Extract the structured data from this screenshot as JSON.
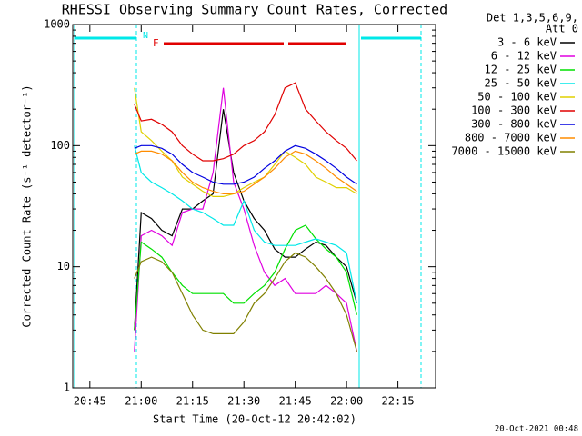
{
  "chart_data": {
    "type": "line",
    "title": "RHESSI Observing Summary Count Rates, Corrected",
    "xlabel": "Start Time (20-Oct-12 20:42:02)",
    "ylabel": "Corrected Count Rate (s⁻¹ detector⁻¹)",
    "legend_header": [
      "Det 1,3,5,6,9,",
      "Att 0"
    ],
    "footer": "20-Oct-2021 00:48",
    "flags": [
      "N",
      "F"
    ],
    "log_y": true,
    "xlim": [
      "20:40",
      "22:26"
    ],
    "xticks": [
      "20:45",
      "21:00",
      "21:15",
      "21:30",
      "21:45",
      "22:00",
      "22:15"
    ],
    "ylim": [
      1,
      1000
    ],
    "yticks": [
      1,
      10,
      100,
      1000
    ],
    "x": [
      "20:58",
      "21:00",
      "21:03",
      "21:06",
      "21:09",
      "21:12",
      "21:15",
      "21:18",
      "21:21",
      "21:24",
      "21:27",
      "21:30",
      "21:33",
      "21:36",
      "21:39",
      "21:42",
      "21:45",
      "21:48",
      "21:51",
      "21:54",
      "21:57",
      "22:00",
      "22:03"
    ],
    "series": [
      {
        "name": "3 - 6 keV",
        "color": "#000000",
        "values": [
          3,
          28,
          25,
          20,
          18,
          30,
          30,
          35,
          40,
          200,
          60,
          35,
          25,
          20,
          14,
          12,
          12,
          14,
          16,
          15,
          12,
          10,
          5
        ]
      },
      {
        "name": "6 - 12 keV",
        "color": "#e000e0",
        "values": [
          2,
          18,
          20,
          18,
          15,
          28,
          30,
          30,
          60,
          300,
          50,
          30,
          15,
          9,
          7,
          8,
          6,
          6,
          6,
          7,
          6,
          5,
          2
        ]
      },
      {
        "name": "12 - 25 keV",
        "color": "#00e000",
        "values": [
          3,
          16,
          14,
          12,
          9,
          7,
          6,
          6,
          6,
          6,
          5,
          5,
          6,
          7,
          9,
          14,
          20,
          22,
          17,
          14,
          12,
          9,
          4
        ]
      },
      {
        "name": "25 - 50 keV",
        "color": "#00e8e8",
        "values": [
          100,
          60,
          50,
          45,
          40,
          35,
          30,
          28,
          25,
          22,
          22,
          35,
          20,
          16,
          15,
          15,
          15,
          16,
          17,
          16,
          15,
          13,
          5
        ]
      },
      {
        "name": "50 - 100 keV",
        "color": "#e0d000",
        "values": [
          300,
          130,
          110,
          90,
          75,
          55,
          48,
          42,
          38,
          38,
          40,
          45,
          50,
          55,
          70,
          90,
          80,
          70,
          55,
          50,
          45,
          45,
          40
        ]
      },
      {
        "name": "100 - 300 keV",
        "color": "#e00000",
        "values": [
          220,
          160,
          165,
          150,
          130,
          100,
          85,
          75,
          75,
          78,
          85,
          100,
          110,
          130,
          180,
          300,
          330,
          200,
          160,
          130,
          110,
          95,
          75
        ]
      },
      {
        "name": "300 - 800 keV",
        "color": "#0000e0",
        "values": [
          95,
          100,
          100,
          95,
          85,
          70,
          60,
          55,
          50,
          48,
          48,
          50,
          55,
          65,
          75,
          90,
          100,
          95,
          85,
          75,
          65,
          55,
          48
        ]
      },
      {
        "name": "800 - 7000 keV",
        "color": "#ff8c00",
        "values": [
          85,
          90,
          90,
          85,
          75,
          60,
          50,
          45,
          42,
          40,
          40,
          42,
          48,
          55,
          65,
          80,
          90,
          85,
          75,
          65,
          55,
          48,
          42
        ]
      },
      {
        "name": "7000 - 15000 keV",
        "color": "#808000",
        "values": [
          8,
          11,
          12,
          11,
          9,
          6,
          4,
          3,
          2.8,
          2.8,
          2.8,
          3.5,
          5,
          6,
          8,
          11,
          13,
          12,
          10,
          8,
          6,
          4,
          2
        ]
      }
    ]
  }
}
